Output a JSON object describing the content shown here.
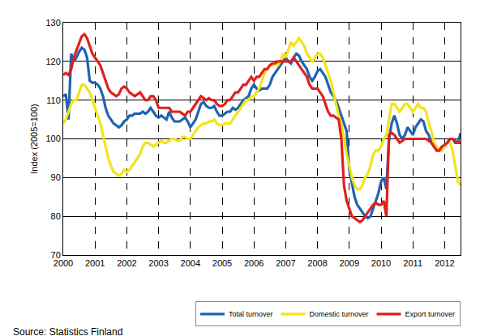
{
  "chart_data": {
    "type": "line",
    "y_label": "Index (2005=100)",
    "annotations": [
      "Source: Statistics Finland"
    ],
    "categories": [
      "2000",
      null,
      null,
      null,
      null,
      null,
      null,
      null,
      null,
      null,
      null,
      null,
      "2001",
      null,
      null,
      null,
      null,
      null,
      null,
      null,
      null,
      null,
      null,
      null,
      "2002",
      null,
      null,
      null,
      null,
      null,
      null,
      null,
      null,
      null,
      null,
      null,
      "2003",
      null,
      null,
      null,
      null,
      null,
      null,
      null,
      null,
      null,
      null,
      null,
      "2004",
      null,
      null,
      null,
      null,
      null,
      null,
      null,
      null,
      null,
      null,
      null,
      "2005",
      null,
      null,
      null,
      null,
      null,
      null,
      null,
      null,
      null,
      null,
      null,
      "2006",
      null,
      null,
      null,
      null,
      null,
      null,
      null,
      null,
      null,
      null,
      null,
      "2007",
      null,
      null,
      null,
      null,
      null,
      null,
      null,
      null,
      null,
      null,
      null,
      "2008",
      null,
      null,
      null,
      null,
      null,
      null,
      null,
      null,
      null,
      null,
      null,
      "2009",
      null,
      null,
      null,
      null,
      null,
      null,
      null,
      null,
      null,
      null,
      null,
      "2010",
      null,
      null,
      null,
      null,
      null,
      null,
      null,
      null,
      null,
      null,
      null,
      "2011",
      null,
      null,
      null,
      null,
      null,
      null,
      null,
      null,
      null,
      null,
      null,
      "2012",
      null,
      null,
      null,
      null,
      null,
      null
    ],
    "series": [
      {
        "name": "Total turnover",
        "color": "#1f63b4",
        "values": [
          111,
          111.5,
          105,
          122,
          120,
          121,
          122.5,
          123.5,
          123,
          121,
          115,
          114.5,
          114.5,
          114,
          113,
          111,
          108,
          106,
          105,
          104,
          103.5,
          103,
          103.5,
          104.5,
          105,
          106,
          106,
          106.5,
          106.5,
          106.5,
          107,
          106.5,
          107,
          108,
          107,
          106,
          105.5,
          106,
          105.5,
          105,
          107,
          105.5,
          104.5,
          104.5,
          104.5,
          105,
          105.5,
          104.5,
          103,
          104,
          105,
          107,
          109,
          109.5,
          108.5,
          108,
          108,
          108.5,
          107,
          106,
          106,
          106.5,
          107,
          107,
          108,
          107.5,
          108,
          109,
          110,
          110.5,
          111,
          113,
          114,
          113,
          112.5,
          113,
          113,
          113,
          114,
          116,
          117,
          118,
          119,
          120,
          121,
          120,
          119.5,
          121,
          122,
          121.5,
          120,
          119,
          118,
          116,
          115,
          116,
          117.5,
          118,
          117,
          116,
          114,
          112,
          111,
          110,
          108,
          106,
          104,
          102,
          92,
          88,
          85,
          83,
          82,
          81,
          80,
          79.5,
          80,
          82,
          84,
          86,
          89,
          90,
          87,
          100,
          104,
          106,
          104,
          101,
          100,
          101,
          103,
          102,
          101,
          103,
          104,
          105,
          104.5,
          102,
          101,
          99,
          98,
          97,
          97,
          98,
          98,
          99,
          100,
          100,
          99,
          99,
          101.5
        ]
      },
      {
        "name": "Domestic turnover",
        "color": "#f2e418",
        "values": [
          104,
          105,
          107,
          109,
          110,
          110,
          112,
          114,
          114,
          113,
          112,
          110,
          108,
          106,
          104,
          101,
          98,
          95,
          93,
          91.5,
          91,
          90.5,
          91,
          92,
          91.5,
          92,
          93,
          94,
          95,
          96,
          98,
          99,
          99,
          98.5,
          98,
          98.5,
          99,
          99.5,
          99,
          99,
          99.5,
          100,
          100,
          99.5,
          99.5,
          100.5,
          100.5,
          100,
          100,
          101,
          102,
          103,
          103.5,
          104,
          104,
          104.5,
          104.5,
          105,
          104,
          103.5,
          103.5,
          104,
          104,
          104,
          105,
          106,
          107,
          108,
          109,
          110,
          110,
          111,
          111,
          112,
          113,
          115,
          117,
          118,
          119,
          119,
          119.5,
          119,
          120,
          122,
          121,
          123,
          125,
          124,
          125,
          126,
          125,
          124,
          122,
          121,
          120,
          121,
          122,
          122,
          121,
          119,
          117,
          115,
          112,
          109,
          106,
          104,
          100,
          96,
          93,
          90,
          88,
          87,
          87,
          88,
          90,
          91,
          93,
          96,
          97,
          97,
          98,
          100,
          101,
          105,
          109,
          109,
          108,
          107,
          108,
          109,
          109,
          108,
          107,
          108,
          109,
          108,
          108,
          107,
          104,
          102,
          99,
          98,
          97,
          97,
          98,
          99,
          99,
          97,
          93,
          89,
          88
        ]
      },
      {
        "name": "Export turnover",
        "color": "#e0201e",
        "values": [
          116.5,
          117,
          116.5,
          118,
          121,
          123,
          125,
          126.5,
          127,
          126,
          124,
          122,
          121,
          120,
          119,
          117,
          115,
          113,
          112,
          111.5,
          111,
          111.5,
          113,
          113.5,
          113,
          112,
          111.5,
          111,
          111.5,
          112,
          111,
          110,
          110,
          111,
          111,
          110,
          108,
          108,
          108,
          108,
          108,
          107,
          107,
          107,
          107,
          106.5,
          106,
          107,
          107,
          108,
          109,
          110,
          111,
          110.5,
          110,
          110.5,
          110,
          110,
          109,
          108.5,
          108.5,
          109,
          110,
          110,
          111,
          112,
          112,
          113,
          114,
          114,
          115,
          116,
          115,
          116,
          116,
          117,
          118,
          118,
          119,
          119.5,
          119.5,
          120,
          120,
          120,
          120,
          120,
          120,
          121,
          120,
          119,
          118,
          117,
          116,
          114,
          113,
          113,
          113,
          112,
          111,
          109,
          107,
          106,
          106,
          105.5,
          105,
          100,
          88,
          84,
          82,
          80,
          79.5,
          79,
          78.5,
          79,
          80,
          81,
          82,
          83,
          83.5,
          83,
          83,
          84,
          80,
          101,
          101.5,
          101,
          100,
          99,
          99.5,
          100,
          100,
          100,
          100,
          100,
          100,
          100,
          100,
          100,
          99.5,
          99,
          98,
          97,
          97,
          98,
          98.5,
          99,
          100,
          100,
          99.5,
          99,
          99
        ]
      }
    ],
    "ylim": [
      70,
      130
    ],
    "yticks": [
      70,
      80,
      90,
      100,
      110,
      120,
      130
    ],
    "grid": true,
    "legend": "bottom right"
  }
}
